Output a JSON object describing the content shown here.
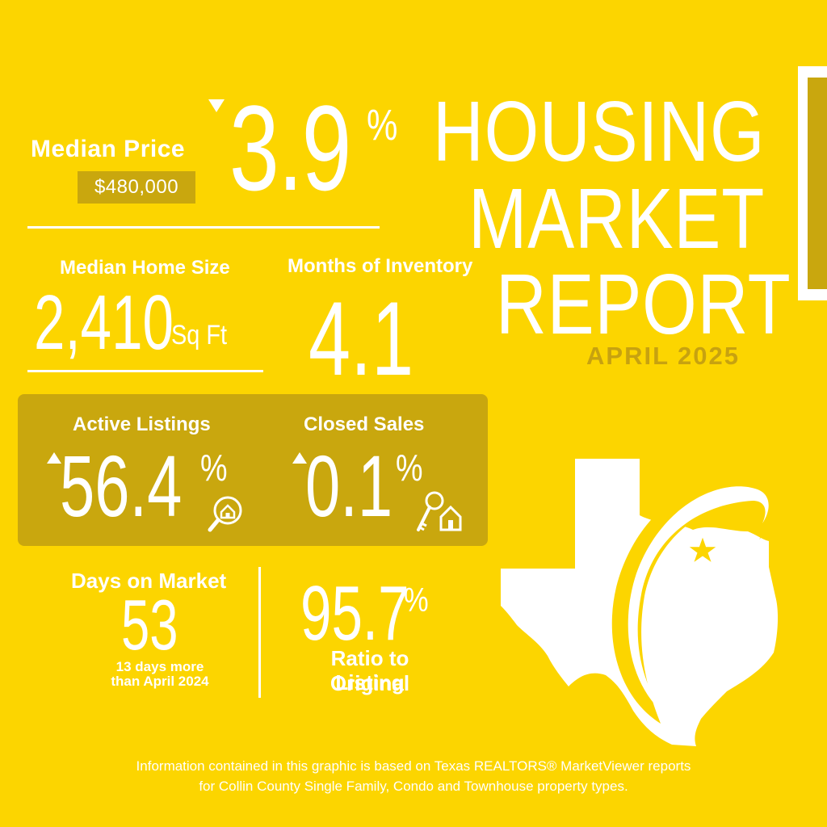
{
  "median_price": {
    "label": "Median Price",
    "value": "$480,000",
    "change": "3.9",
    "change_unit": "%"
  },
  "title": {
    "line1": "HOUSING",
    "line2": "MARKET",
    "line3": "REPORT",
    "date": "APRIL 2025"
  },
  "home_size": {
    "label": "Median Home Size",
    "value": "2,410",
    "unit": "Sq Ft"
  },
  "inventory": {
    "label": "Months of Inventory",
    "value": "4.1"
  },
  "active_listings": {
    "label": "Active Listings",
    "value": "56.4",
    "unit": "%"
  },
  "closed_sales": {
    "label": "Closed Sales",
    "value": "0.1",
    "unit": "%"
  },
  "days_on_market": {
    "label": "Days on Market",
    "value": "53",
    "note_line1": "13 days more",
    "note_line2": "than April 2024"
  },
  "ratio": {
    "value": "95.7",
    "unit": "%",
    "label_line1": "Ratio to Original",
    "label_line2": "Listing"
  },
  "disclaimer": {
    "line1": "Information contained in this graphic is based on Texas REALTORS® MarketViewer reports",
    "line2": "for Collin County Single Family, Condo and Townhouse property types."
  },
  "icons": {
    "price_trend": "down-arrow-icon",
    "active_trend": "up-arrow-icon",
    "closed_trend": "up-arrow-icon",
    "active": "house-search-icon",
    "closed": "house-keys-icon",
    "map": "texas-map-icon"
  },
  "colors": {
    "background": "#fcd500",
    "accent": "#c9a70e",
    "text": "#ffffff",
    "date": "#c7a210"
  }
}
